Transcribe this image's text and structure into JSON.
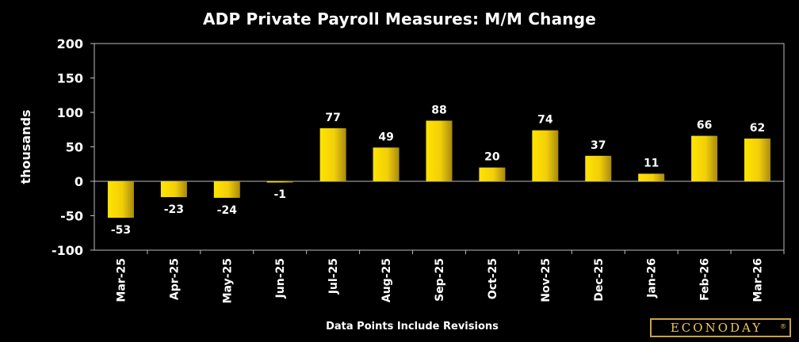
{
  "chart_data": {
    "type": "bar",
    "title": "ADP Private Payroll Measures: M/M Change",
    "xlabel": "",
    "ylabel": "thousands",
    "ylim": [
      -100,
      200
    ],
    "yticks": [
      "-100",
      "-50",
      "0",
      "50",
      "100",
      "150",
      "200"
    ],
    "ytick_values": [
      -100,
      -50,
      0,
      50,
      100,
      150,
      200
    ],
    "categories": [
      "Mar-25",
      "Apr-25",
      "May-25",
      "Jun-25",
      "Jul-25",
      "Aug-25",
      "Sep-25",
      "Oct-25",
      "Nov-25",
      "Dec-25",
      "Jan-26",
      "Feb-26",
      "Mar-26"
    ],
    "values": [
      -53,
      -23,
      -24,
      -1,
      77,
      49,
      88,
      20,
      74,
      37,
      11,
      66,
      62
    ],
    "data_labels": [
      "-53",
      "-23",
      "-24",
      "-1",
      "77",
      "49",
      "88",
      "20",
      "74",
      "37",
      "11",
      "66",
      "62"
    ],
    "grid": false,
    "legend": "none",
    "footnote": "Data Points Include Revisions"
  },
  "branding": {
    "logo_text": "ECONODAY",
    "logo_mark": "®"
  },
  "colors": {
    "background": "#000000",
    "bar_light": "#ffe400",
    "bar_dark": "#a88a10",
    "axis": "#bdbdbd",
    "text": "#ffffff"
  }
}
